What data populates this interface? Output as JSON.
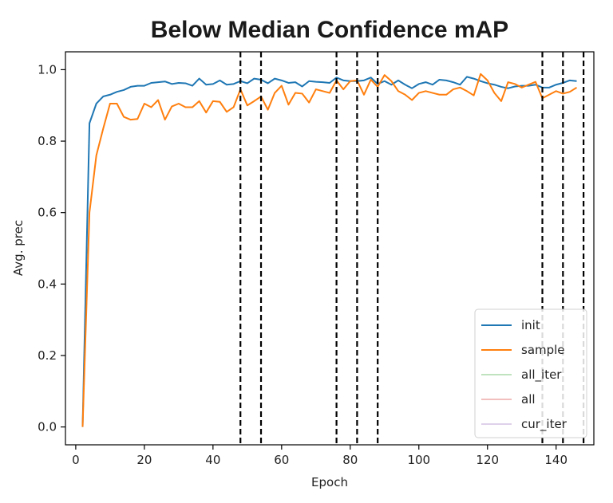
{
  "chart_data": {
    "type": "line",
    "title": "Below Median Confidence mAP",
    "xlabel": "Epoch",
    "ylabel": "Avg. prec",
    "xlim": [
      -3,
      151
    ],
    "ylim": [
      -0.05,
      1.05
    ],
    "xticks": [
      0,
      20,
      40,
      60,
      80,
      100,
      120,
      140
    ],
    "yticks": [
      0.0,
      0.2,
      0.4,
      0.6,
      0.8,
      1.0
    ],
    "xtick_labels": [
      "0",
      "20",
      "40",
      "60",
      "80",
      "100",
      "120",
      "140"
    ],
    "ytick_labels": [
      "0.0",
      "0.2",
      "0.4",
      "0.6",
      "0.8",
      "1.0"
    ],
    "grid": false,
    "legend_position": "lower-right",
    "vlines": [
      48,
      54,
      76,
      82,
      88,
      136,
      142,
      148
    ],
    "series": [
      {
        "name": "init",
        "color": "#1f77b4",
        "x": [
          2,
          4,
          6,
          8,
          10,
          12,
          14,
          16,
          18,
          20,
          22,
          24,
          26,
          28,
          30,
          32,
          34,
          36,
          38,
          40,
          42,
          44,
          46,
          48,
          50,
          52,
          54,
          56,
          58,
          60,
          62,
          64,
          66,
          68,
          70,
          72,
          74,
          76,
          78,
          80,
          82,
          84,
          86,
          88,
          90,
          92,
          94,
          96,
          98,
          100,
          102,
          104,
          106,
          108,
          110,
          112,
          114,
          116,
          118,
          120,
          122,
          124,
          126,
          128,
          130,
          132,
          134,
          136,
          138,
          140,
          142,
          144,
          146
        ],
        "y": [
          0.0,
          0.85,
          0.905,
          0.925,
          0.93,
          0.938,
          0.943,
          0.952,
          0.955,
          0.955,
          0.963,
          0.965,
          0.967,
          0.96,
          0.963,
          0.962,
          0.955,
          0.975,
          0.958,
          0.96,
          0.97,
          0.958,
          0.96,
          0.968,
          0.962,
          0.975,
          0.972,
          0.962,
          0.975,
          0.97,
          0.963,
          0.965,
          0.953,
          0.968,
          0.966,
          0.965,
          0.963,
          0.978,
          0.97,
          0.968,
          0.968,
          0.97,
          0.978,
          0.96,
          0.968,
          0.958,
          0.97,
          0.958,
          0.948,
          0.96,
          0.965,
          0.958,
          0.972,
          0.97,
          0.965,
          0.958,
          0.98,
          0.975,
          0.968,
          0.962,
          0.958,
          0.952,
          0.948,
          0.953,
          0.955,
          0.955,
          0.958,
          0.95,
          0.95,
          0.958,
          0.963,
          0.97,
          0.968
        ]
      },
      {
        "name": "sample",
        "color": "#ff7f0e",
        "x": [
          2,
          4,
          6,
          8,
          10,
          12,
          14,
          16,
          18,
          20,
          22,
          24,
          26,
          28,
          30,
          32,
          34,
          36,
          38,
          40,
          42,
          44,
          46,
          48,
          50,
          52,
          54,
          56,
          58,
          60,
          62,
          64,
          66,
          68,
          70,
          72,
          74,
          76,
          78,
          80,
          82,
          84,
          86,
          88,
          90,
          92,
          94,
          96,
          98,
          100,
          102,
          104,
          106,
          108,
          110,
          112,
          114,
          116,
          118,
          120,
          122,
          124,
          126,
          128,
          130,
          132,
          134,
          136,
          138,
          140,
          142,
          144,
          146
        ],
        "y": [
          0.0,
          0.6,
          0.76,
          0.835,
          0.905,
          0.905,
          0.868,
          0.86,
          0.862,
          0.905,
          0.895,
          0.915,
          0.86,
          0.897,
          0.905,
          0.895,
          0.895,
          0.912,
          0.88,
          0.912,
          0.91,
          0.882,
          0.895,
          0.945,
          0.9,
          0.912,
          0.925,
          0.888,
          0.935,
          0.955,
          0.902,
          0.935,
          0.933,
          0.908,
          0.945,
          0.94,
          0.935,
          0.97,
          0.945,
          0.968,
          0.97,
          0.93,
          0.972,
          0.952,
          0.985,
          0.968,
          0.94,
          0.93,
          0.915,
          0.935,
          0.94,
          0.935,
          0.93,
          0.93,
          0.945,
          0.95,
          0.94,
          0.928,
          0.988,
          0.97,
          0.935,
          0.912,
          0.965,
          0.96,
          0.95,
          0.958,
          0.966,
          0.92,
          0.93,
          0.94,
          0.933,
          0.938,
          0.95
        ]
      },
      {
        "name": "all_iter",
        "color": "#2ca02c",
        "faded": true,
        "x": [],
        "y": []
      },
      {
        "name": "all",
        "color": "#d62728",
        "faded": true,
        "x": [],
        "y": []
      },
      {
        "name": "cur_iter",
        "color": "#9467bd",
        "faded": true,
        "x": [],
        "y": []
      }
    ]
  }
}
